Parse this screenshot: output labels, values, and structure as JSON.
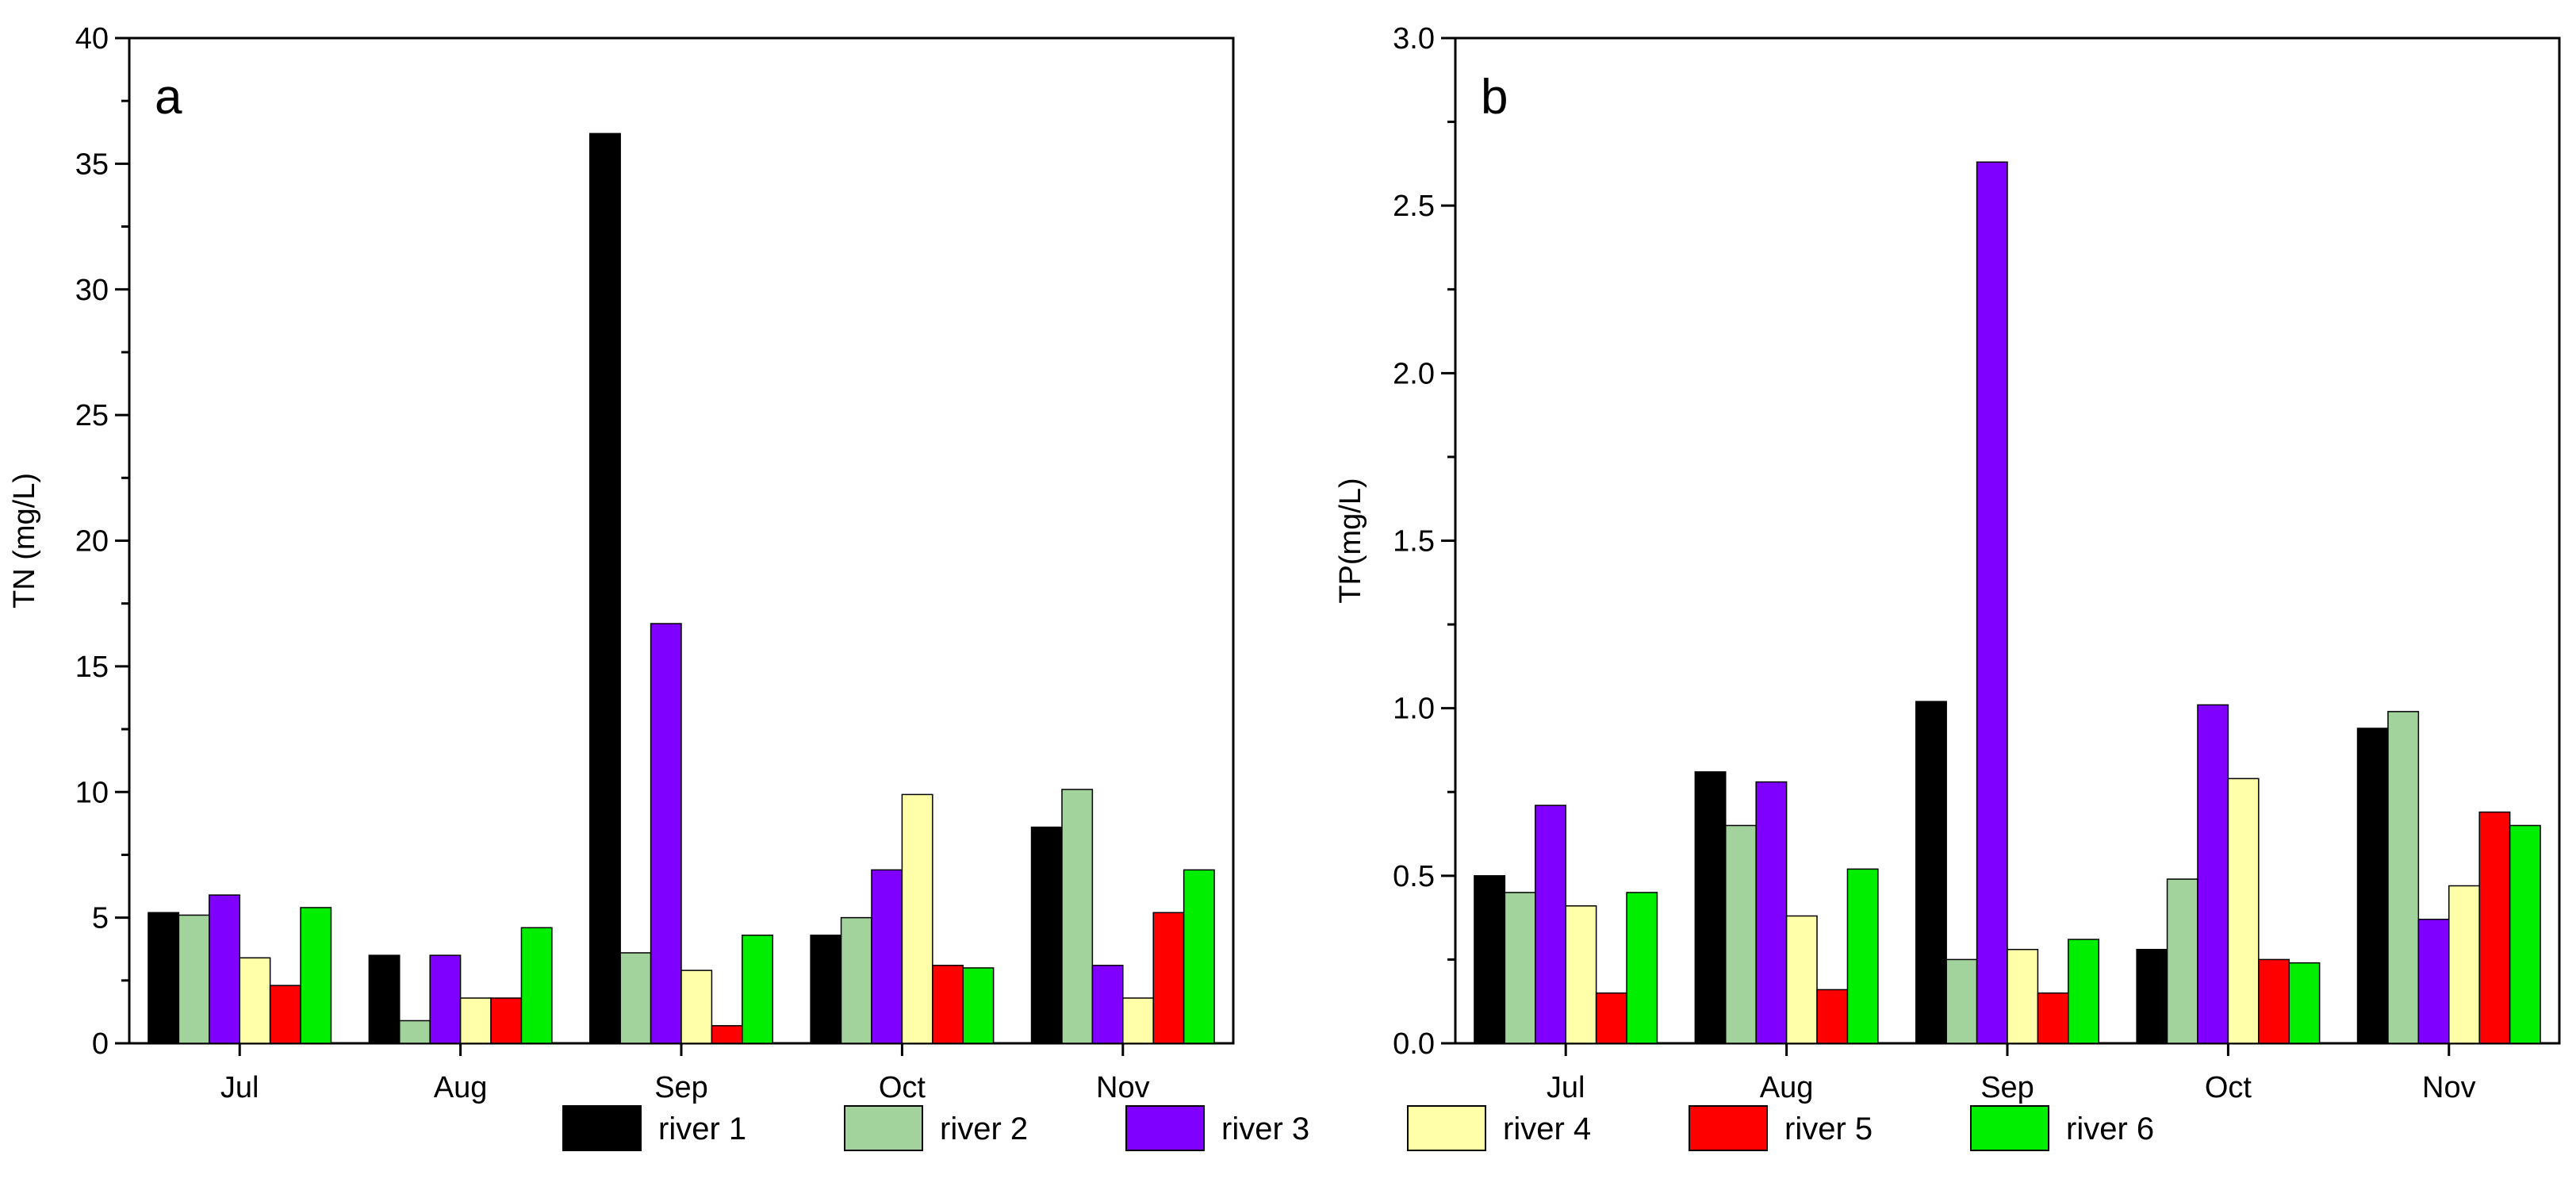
{
  "chart_data": [
    {
      "type": "bar",
      "panel_label": "a",
      "title": "",
      "xlabel": "",
      "ylabel": "TN (mg/L)",
      "ylim": [
        0,
        40
      ],
      "yticks": [
        "0",
        "5",
        "10",
        "15",
        "20",
        "25",
        "30",
        "35",
        "40"
      ],
      "categories": [
        "Jul",
        "Aug",
        "Sep",
        "Oct",
        "Nov"
      ],
      "series": [
        {
          "name": "river 1",
          "values": [
            5.2,
            3.5,
            36.2,
            4.3,
            8.6
          ]
        },
        {
          "name": "river 2",
          "values": [
            5.1,
            0.9,
            3.6,
            5.0,
            10.1
          ]
        },
        {
          "name": "river 3",
          "values": [
            5.9,
            3.5,
            16.7,
            6.9,
            3.1
          ]
        },
        {
          "name": "river 4",
          "values": [
            3.4,
            1.8,
            2.9,
            9.9,
            1.8
          ]
        },
        {
          "name": "river 5",
          "values": [
            2.3,
            1.8,
            0.7,
            3.1,
            5.2
          ]
        },
        {
          "name": "river 6",
          "values": [
            5.4,
            4.6,
            4.3,
            3.0,
            6.9
          ]
        }
      ]
    },
    {
      "type": "bar",
      "panel_label": "b",
      "title": "",
      "xlabel": "",
      "ylabel": "TP(mg/L)",
      "ylim": [
        0,
        3.0
      ],
      "yticks": [
        "0.0",
        "0.5",
        "1.0",
        "1.5",
        "2.0",
        "2.5",
        "3.0"
      ],
      "categories": [
        "Jul",
        "Aug",
        "Sep",
        "Oct",
        "Nov"
      ],
      "series": [
        {
          "name": "river 1",
          "values": [
            0.5,
            0.81,
            1.02,
            0.28,
            0.94
          ]
        },
        {
          "name": "river 2",
          "values": [
            0.45,
            0.65,
            0.25,
            0.49,
            0.99
          ]
        },
        {
          "name": "river 3",
          "values": [
            0.71,
            0.78,
            2.63,
            1.01,
            0.37
          ]
        },
        {
          "name": "river 4",
          "values": [
            0.41,
            0.38,
            0.28,
            0.79,
            0.47
          ]
        },
        {
          "name": "river 5",
          "values": [
            0.15,
            0.16,
            0.15,
            0.25,
            0.69
          ]
        },
        {
          "name": "river 6",
          "values": [
            0.45,
            0.52,
            0.31,
            0.24,
            0.65
          ]
        }
      ]
    }
  ],
  "legend": {
    "position": "bottom-center",
    "items": [
      "river 1",
      "river 2",
      "river 3",
      "river 4",
      "river 5",
      "river 6"
    ]
  },
  "colors": {
    "river 1": "#000000",
    "river 2": "#a3d39c",
    "river 3": "#8000ff",
    "river 4": "#ffffaa",
    "river 5": "#ff0000",
    "river 6": "#00ee00"
  }
}
